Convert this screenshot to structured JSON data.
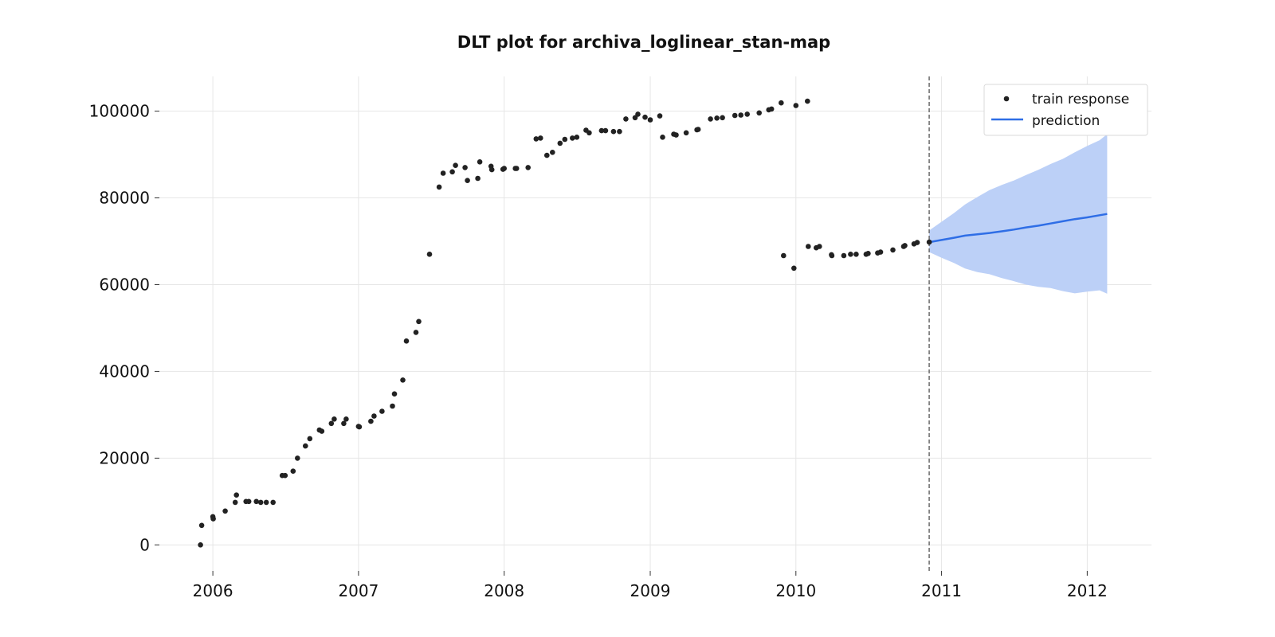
{
  "chart_data": {
    "type": "scatter",
    "title": "DLT plot for archiva_loglinear_stan-map",
    "xlabel": "",
    "ylabel": "",
    "xlim": [
      "2005-08-20",
      "2012-06-10"
    ],
    "ylim": [
      -6000,
      108000
    ],
    "x_ticks": [
      "2006",
      "2007",
      "2008",
      "2009",
      "2010",
      "2011",
      "2012"
    ],
    "y_ticks": [
      0,
      20000,
      40000,
      60000,
      80000,
      100000
    ],
    "y_tick_labels": [
      "0",
      "20000",
      "40000",
      "60000",
      "80000",
      "100000"
    ],
    "grid": true,
    "legend_position": "top-right",
    "legend": [
      "train response",
      "prediction"
    ],
    "colors": {
      "train_response": "#222222",
      "prediction": "#2f6ee6",
      "interval": "#bcd0f7",
      "cutoff_line": "#666666"
    },
    "cutoff_date": "2010-12-01",
    "series": [
      {
        "name": "train response",
        "type": "scatter",
        "points": [
          [
            "2005-12-01",
            0
          ],
          [
            "2005-12-04",
            4500
          ],
          [
            "2006-01-01",
            6500
          ],
          [
            "2006-01-02",
            6000
          ],
          [
            "2006-02-01",
            7800
          ],
          [
            "2006-02-26",
            9800
          ],
          [
            "2006-03-01",
            11500
          ],
          [
            "2006-03-25",
            10000
          ],
          [
            "2006-04-01",
            10000
          ],
          [
            "2006-04-20",
            10000
          ],
          [
            "2006-05-01",
            9800
          ],
          [
            "2006-05-15",
            9800
          ],
          [
            "2006-06-01",
            9800
          ],
          [
            "2006-06-24",
            16000
          ],
          [
            "2006-07-01",
            16000
          ],
          [
            "2006-07-21",
            17000
          ],
          [
            "2006-08-01",
            20000
          ],
          [
            "2006-08-21",
            22800
          ],
          [
            "2006-09-01",
            24500
          ],
          [
            "2006-09-25",
            26500
          ],
          [
            "2006-10-01",
            26200
          ],
          [
            "2006-10-25",
            28000
          ],
          [
            "2006-11-01",
            29000
          ],
          [
            "2006-11-25",
            28000
          ],
          [
            "2006-12-01",
            29000
          ],
          [
            "2007-01-01",
            27300
          ],
          [
            "2007-01-03",
            27200
          ],
          [
            "2007-02-01",
            28500
          ],
          [
            "2007-02-09",
            29700
          ],
          [
            "2007-03-01",
            30800
          ],
          [
            "2007-03-27",
            32000
          ],
          [
            "2007-04-01",
            34800
          ],
          [
            "2007-04-22",
            38000
          ],
          [
            "2007-05-01",
            47000
          ],
          [
            "2007-05-25",
            49000
          ],
          [
            "2007-06-01",
            51500
          ],
          [
            "2007-06-28",
            67000
          ],
          [
            "2007-07-22",
            82500
          ],
          [
            "2007-08-01",
            85700
          ],
          [
            "2007-08-24",
            86000
          ],
          [
            "2007-09-01",
            87500
          ],
          [
            "2007-09-25",
            87000
          ],
          [
            "2007-10-01",
            84000
          ],
          [
            "2007-10-27",
            84500
          ],
          [
            "2007-11-01",
            88300
          ],
          [
            "2007-11-29",
            87300
          ],
          [
            "2007-12-01",
            86500
          ],
          [
            "2007-12-29",
            86600
          ],
          [
            "2008-01-01",
            86800
          ],
          [
            "2008-01-29",
            86800
          ],
          [
            "2008-02-01",
            86800
          ],
          [
            "2008-03-01",
            87000
          ],
          [
            "2008-03-21",
            93600
          ],
          [
            "2008-04-01",
            93800
          ],
          [
            "2008-04-17",
            89800
          ],
          [
            "2008-05-01",
            90500
          ],
          [
            "2008-05-20",
            92600
          ],
          [
            "2008-06-01",
            93500
          ],
          [
            "2008-06-20",
            93800
          ],
          [
            "2008-07-01",
            94000
          ],
          [
            "2008-07-24",
            95600
          ],
          [
            "2008-08-01",
            95000
          ],
          [
            "2008-09-01",
            95500
          ],
          [
            "2008-09-11",
            95500
          ],
          [
            "2008-10-01",
            95300
          ],
          [
            "2008-10-16",
            95300
          ],
          [
            "2008-11-01",
            98200
          ],
          [
            "2008-11-24",
            98500
          ],
          [
            "2008-12-01",
            99300
          ],
          [
            "2008-12-19",
            98600
          ],
          [
            "2009-01-01",
            98000
          ],
          [
            "2009-01-25",
            98900
          ],
          [
            "2009-02-01",
            94000
          ],
          [
            "2009-03-01",
            94700
          ],
          [
            "2009-03-07",
            94500
          ],
          [
            "2009-04-01",
            95000
          ],
          [
            "2009-04-28",
            95700
          ],
          [
            "2009-05-01",
            95800
          ],
          [
            "2009-06-01",
            98200
          ],
          [
            "2009-06-17",
            98400
          ],
          [
            "2009-07-01",
            98500
          ],
          [
            "2009-08-01",
            99000
          ],
          [
            "2009-08-16",
            99100
          ],
          [
            "2009-09-01",
            99300
          ],
          [
            "2009-10-01",
            99600
          ],
          [
            "2009-10-25",
            100300
          ],
          [
            "2009-11-01",
            100500
          ],
          [
            "2009-11-25",
            101900
          ],
          [
            "2009-12-01",
            66700
          ],
          [
            "2009-12-27",
            63800
          ],
          [
            "2010-01-01",
            101300
          ],
          [
            "2010-01-30",
            102300
          ],
          [
            "2010-02-01",
            68800
          ],
          [
            "2010-02-21",
            68500
          ],
          [
            "2010-03-01",
            68800
          ],
          [
            "2010-03-31",
            66900
          ],
          [
            "2010-04-01",
            66700
          ],
          [
            "2010-05-01",
            66700
          ],
          [
            "2010-05-18",
            67000
          ],
          [
            "2010-06-01",
            67000
          ],
          [
            "2010-06-26",
            67000
          ],
          [
            "2010-07-01",
            67200
          ],
          [
            "2010-07-25",
            67300
          ],
          [
            "2010-08-01",
            67500
          ],
          [
            "2010-09-01",
            68000
          ],
          [
            "2010-09-28",
            68800
          ],
          [
            "2010-10-01",
            69000
          ],
          [
            "2010-10-24",
            69400
          ],
          [
            "2010-11-01",
            69700
          ],
          [
            "2010-12-01",
            69800
          ]
        ]
      },
      {
        "name": "prediction",
        "type": "line",
        "x": [
          "2010-12-01",
          "2011-01-01",
          "2011-02-01",
          "2011-03-01",
          "2011-04-01",
          "2011-05-01",
          "2011-06-01",
          "2011-07-01",
          "2011-08-01",
          "2011-09-01",
          "2011-10-01",
          "2011-11-01",
          "2011-12-01",
          "2012-01-01",
          "2012-02-01",
          "2012-02-20"
        ],
        "values": [
          69800,
          70300,
          70800,
          71300,
          71600,
          71900,
          72300,
          72700,
          73200,
          73600,
          74100,
          74600,
          75100,
          75500,
          76000,
          76300
        ],
        "lower": [
          67500,
          66200,
          65000,
          63700,
          62900,
          62400,
          61500,
          60800,
          60000,
          59500,
          59200,
          58500,
          58000,
          58400,
          58700,
          57900
        ],
        "upper": [
          72500,
          74500,
          76500,
          78500,
          80200,
          81800,
          83000,
          84000,
          85300,
          86500,
          87800,
          89000,
          90500,
          92000,
          93300,
          94700
        ]
      }
    ]
  }
}
